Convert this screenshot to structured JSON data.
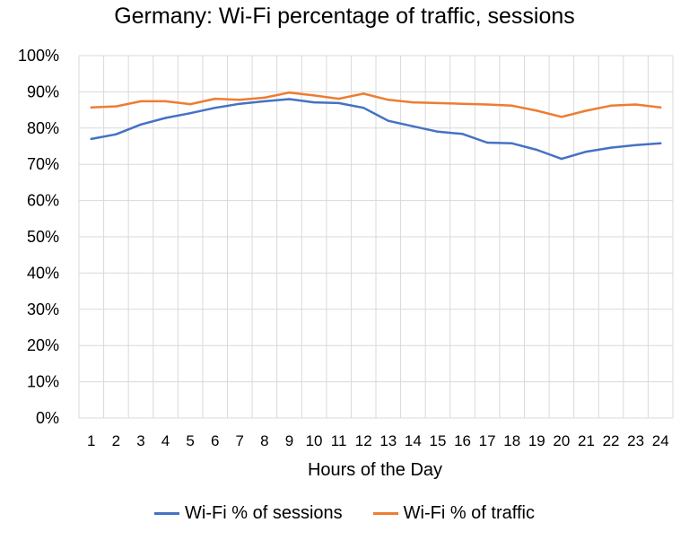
{
  "chart_data": {
    "type": "line",
    "title": "Germany: Wi-Fi percentage of traffic, sessions",
    "xlabel": "Hours of the Day",
    "ylabel": "",
    "x": [
      1,
      2,
      3,
      4,
      5,
      6,
      7,
      8,
      9,
      10,
      11,
      12,
      13,
      14,
      15,
      16,
      17,
      18,
      19,
      20,
      21,
      22,
      23,
      24
    ],
    "ylim": [
      0,
      100
    ],
    "yticks": [
      "0%",
      "10%",
      "20%",
      "30%",
      "40%",
      "50%",
      "60%",
      "70%",
      "80%",
      "90%",
      "100%"
    ],
    "grid": true,
    "legend_position": "bottom",
    "series": [
      {
        "name": "Wi-Fi % of sessions",
        "color": "#4472C4",
        "values": [
          77.0,
          78.3,
          81.0,
          82.8,
          84.1,
          85.6,
          86.7,
          87.4,
          88.0,
          87.1,
          86.9,
          85.6,
          82.0,
          80.5,
          79.0,
          78.4,
          76.0,
          75.8,
          74.0,
          71.5,
          73.5,
          74.6,
          75.3,
          75.8
        ]
      },
      {
        "name": "Wi-Fi % of traffic",
        "color": "#ED7D31",
        "values": [
          85.7,
          86.0,
          87.4,
          87.4,
          86.6,
          88.1,
          87.8,
          88.4,
          89.8,
          89.0,
          88.1,
          89.5,
          87.8,
          87.1,
          86.9,
          86.7,
          86.5,
          86.2,
          84.8,
          83.1,
          84.8,
          86.2,
          86.5,
          85.7
        ]
      }
    ]
  }
}
